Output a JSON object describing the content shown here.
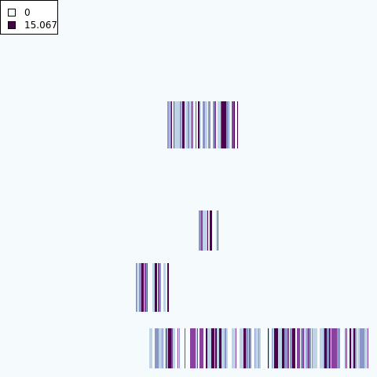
{
  "legend": {
    "items": [
      {
        "label": "0",
        "color": "#f7fcfd"
      },
      {
        "label": "15.067",
        "color": "#4d004b"
      }
    ]
  },
  "colors": {
    "background": "#f5fbfd",
    "scale": [
      "#f7fcfd",
      "#bfd3e6",
      "#8c96c6",
      "#88419d",
      "#4d004b"
    ]
  },
  "chart_data": {
    "type": "heatmap",
    "value_range": [
      0,
      15.067
    ],
    "colormap": "BuPu"
  }
}
